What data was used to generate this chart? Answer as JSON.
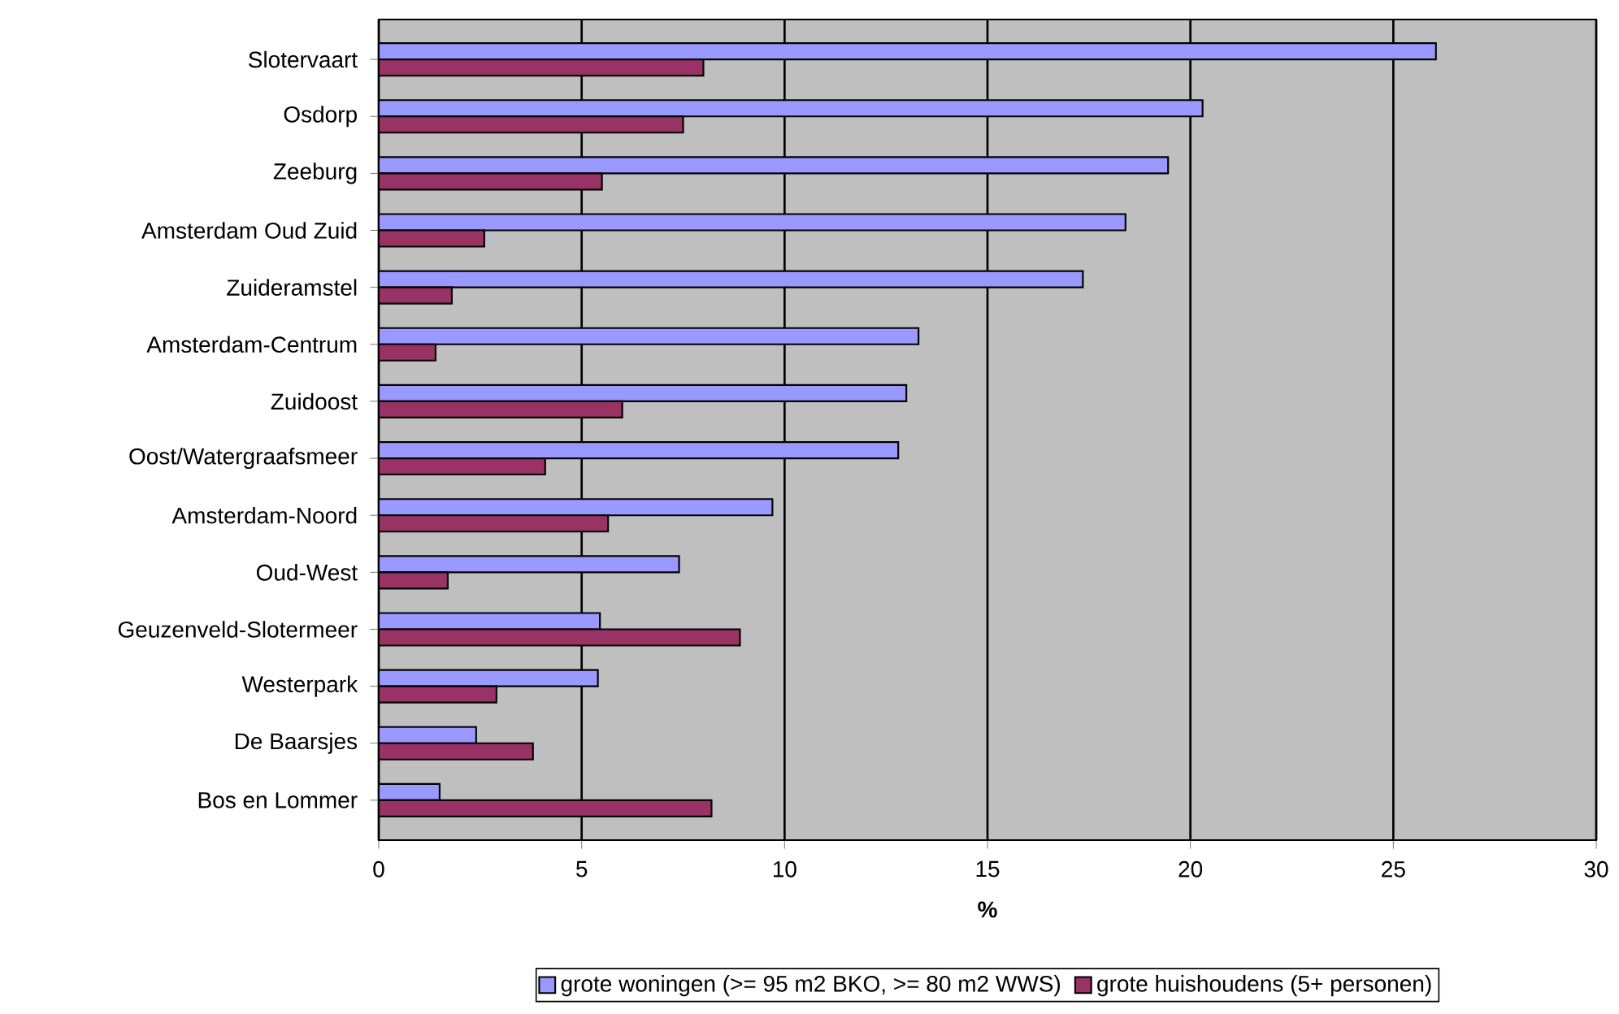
{
  "chart_data": {
    "type": "bar",
    "orientation": "horizontal",
    "xlabel": "%",
    "categories": [
      "Slotervaart",
      "Osdorp",
      "Zeeburg",
      "Amsterdam Oud Zuid",
      "Zuideramstel",
      "Amsterdam-Centrum",
      "Zuidoost",
      "Oost/Watergraafsmeer",
      "Amsterdam-Noord",
      "Oud-West",
      "Geuzenveld-Slotermeer",
      "Westerpark",
      "De Baarsjes",
      "Bos en Lommer"
    ],
    "series": [
      {
        "name": "grote woningen (>= 95 m2 BKO, >= 80 m2 WWS)",
        "color": "#9999ff",
        "values": [
          26.05,
          20.3,
          19.45,
          18.4,
          17.35,
          13.3,
          13.0,
          12.8,
          9.7,
          7.4,
          5.45,
          5.4,
          2.4,
          1.5
        ]
      },
      {
        "name": "grote huishoudens (5+ personen)",
        "color": "#993366",
        "values": [
          8.0,
          7.5,
          5.5,
          2.6,
          1.8,
          1.4,
          6.0,
          4.1,
          5.65,
          1.7,
          8.9,
          2.9,
          3.8,
          8.2
        ]
      }
    ],
    "xlim": [
      0,
      30
    ],
    "xticks": [
      0,
      5,
      10,
      15,
      20,
      25,
      30
    ],
    "grid": "x",
    "legend": "bottom"
  }
}
